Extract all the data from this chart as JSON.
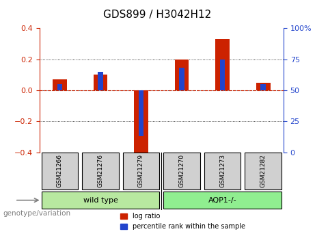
{
  "title": "GDS899 / H3042H12",
  "samples": [
    "GSM21266",
    "GSM21276",
    "GSM21279",
    "GSM21270",
    "GSM21273",
    "GSM21282"
  ],
  "log_ratio": [
    0.07,
    0.1,
    -0.43,
    0.2,
    0.33,
    0.05
  ],
  "percentile_rank": [
    55,
    65,
    13,
    68,
    75,
    55
  ],
  "groups": [
    {
      "label": "wild type",
      "indices": [
        0,
        1,
        2
      ],
      "color": "#b8e8a0"
    },
    {
      "label": "AQP1-/-",
      "indices": [
        3,
        4,
        5
      ],
      "color": "#90ee90"
    }
  ],
  "bar_width": 0.35,
  "ylim": [
    -0.4,
    0.4
  ],
  "y2lim": [
    0,
    100
  ],
  "yticks": [
    -0.4,
    -0.2,
    0.0,
    0.2,
    0.4
  ],
  "y2ticks": [
    0,
    25,
    50,
    75,
    100
  ],
  "y2ticklabels": [
    "0",
    "25",
    "50",
    "75",
    "100%"
  ],
  "red_color": "#cc2200",
  "blue_color": "#2244cc",
  "zero_line_color": "#cc2200",
  "grid_color": "#000000",
  "bg_color": "#ffffff",
  "tick_bg_color": "#d0d0d0",
  "group_label_text": "genotype/variation",
  "legend_items": [
    "log ratio",
    "percentile rank within the sample"
  ]
}
